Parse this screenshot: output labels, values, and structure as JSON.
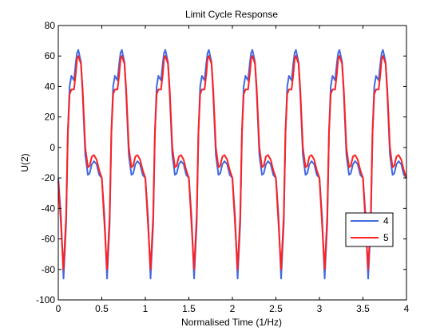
{
  "chart_data": {
    "type": "line",
    "title": "Limit Cycle Response",
    "xlabel": "Normalised Time (1/Hz)",
    "ylabel": "U(2)",
    "xlim": [
      0,
      4
    ],
    "ylim": [
      -100,
      80
    ],
    "xticks": [
      0,
      0.5,
      1,
      1.5,
      2,
      2.5,
      3,
      3.5,
      4
    ],
    "xtick_labels": [
      "0",
      "0.5",
      "1",
      "1.5",
      "2",
      "2.5",
      "3",
      "3.5",
      "4"
    ],
    "yticks": [
      -100,
      -80,
      -60,
      -40,
      -20,
      0,
      20,
      40,
      60,
      80
    ],
    "ytick_labels": [
      "-100",
      "-80",
      "-60",
      "-40",
      "-20",
      "0",
      "20",
      "40",
      "60",
      "80"
    ],
    "grid": false,
    "legend_position": "bottom-right",
    "period": 0.5,
    "series": [
      {
        "name": "4",
        "color": "#4169e1",
        "x": [
          0,
          0.03,
          0.06,
          0.09,
          0.11,
          0.13,
          0.15,
          0.18,
          0.2,
          0.215,
          0.23,
          0.26,
          0.28,
          0.31,
          0.34,
          0.36,
          0.385,
          0.41,
          0.44,
          0.47,
          0.5
        ],
        "y": [
          -20,
          -45,
          -86,
          -50,
          10,
          40,
          47,
          44,
          55,
          62,
          64,
          56,
          35,
          -5,
          -18,
          -17,
          -11,
          -9,
          -11,
          -18,
          -20
        ]
      },
      {
        "name": "5",
        "color": "#ff2020",
        "x": [
          0,
          0.03,
          0.06,
          0.09,
          0.11,
          0.13,
          0.15,
          0.18,
          0.2,
          0.215,
          0.23,
          0.26,
          0.28,
          0.31,
          0.34,
          0.36,
          0.385,
          0.41,
          0.44,
          0.47,
          0.5
        ],
        "y": [
          -22,
          -50,
          -80,
          -45,
          10,
          35,
          38,
          38,
          48,
          58,
          60,
          55,
          38,
          0,
          -13,
          -12,
          -6,
          -5,
          -8,
          -15,
          -20
        ]
      }
    ]
  }
}
